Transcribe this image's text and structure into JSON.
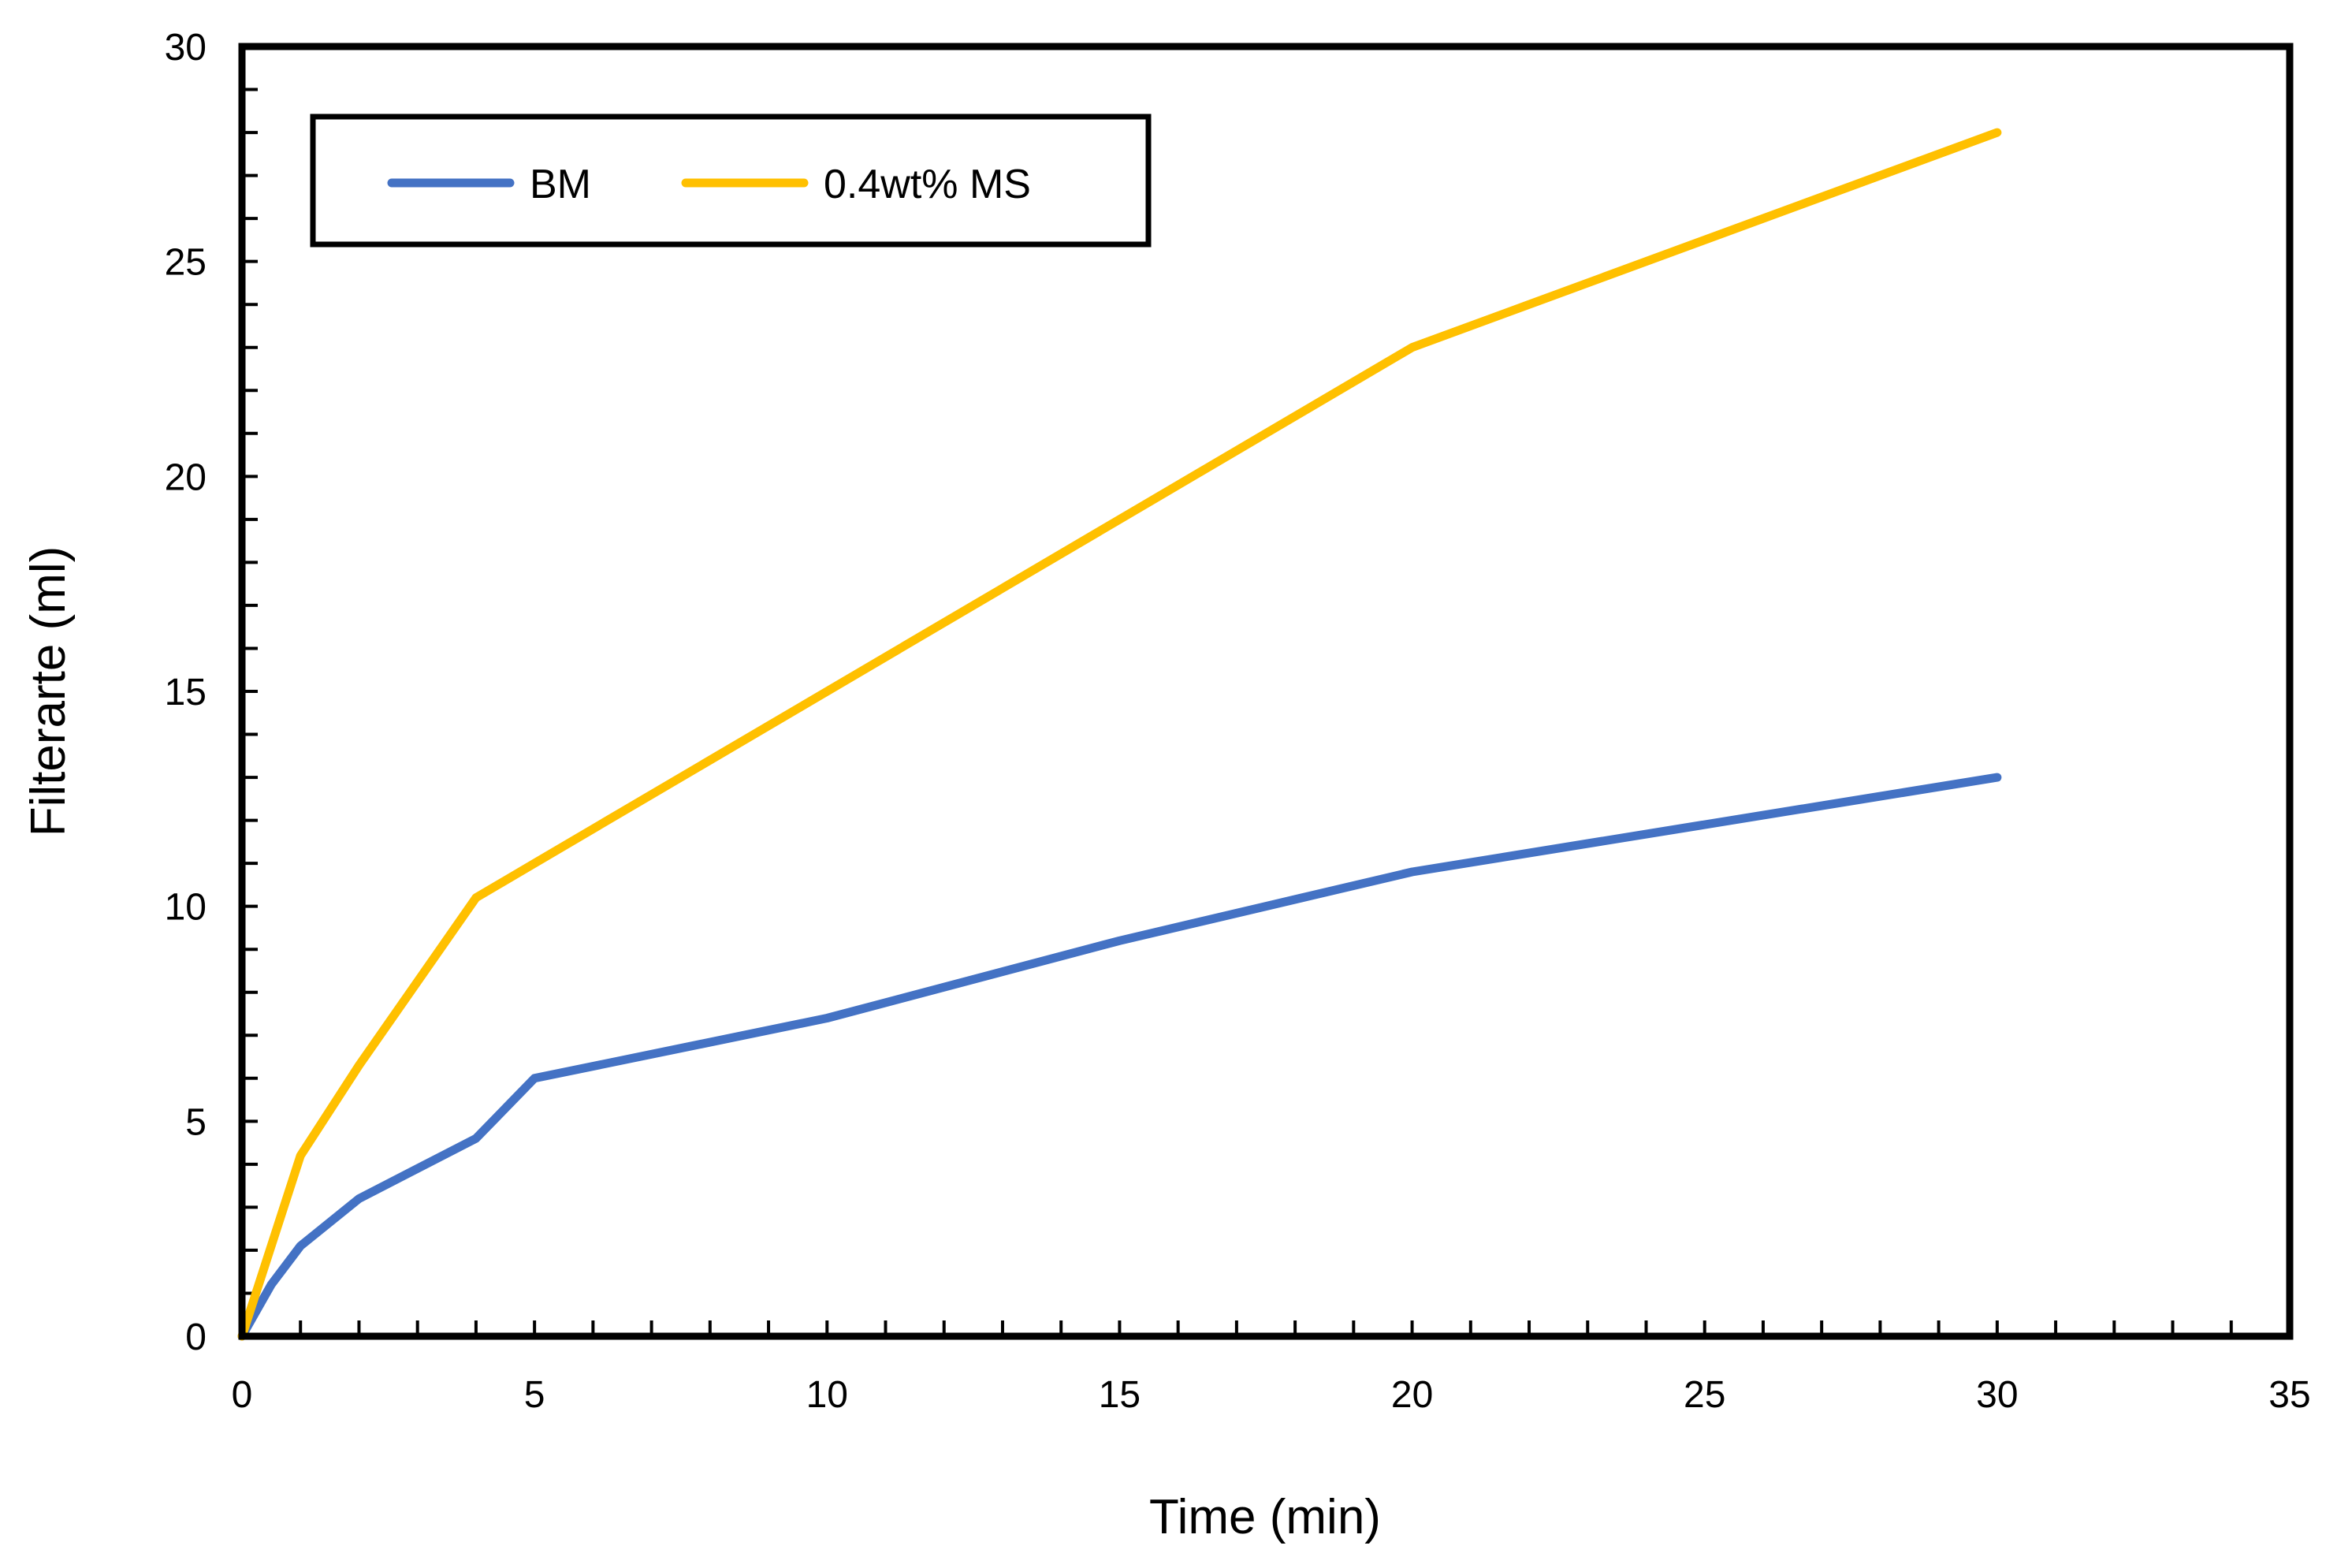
{
  "chart_data": {
    "type": "line",
    "title": "",
    "xlabel": "Time (min)",
    "ylabel": "Filterarte (ml)",
    "xlim": [
      0,
      35
    ],
    "ylim": [
      0,
      30
    ],
    "x_major_ticks": [
      0,
      5,
      10,
      15,
      20,
      25,
      30,
      35
    ],
    "y_major_ticks": [
      0,
      5,
      10,
      15,
      20,
      25,
      30
    ],
    "x_minor_step": 1,
    "y_minor_step": 1,
    "grid": false,
    "legend_position": "top-left",
    "series": [
      {
        "name": "BM",
        "color": "#4472C4",
        "x": [
          0,
          0.5,
          1,
          2,
          4,
          5,
          10,
          15,
          20,
          30
        ],
        "y": [
          0,
          1.2,
          2.1,
          3.2,
          4.6,
          6.0,
          7.4,
          9.2,
          10.8,
          13.0
        ]
      },
      {
        "name": "0.4wt% MS",
        "color": "#FFC000",
        "x": [
          0,
          1,
          2,
          4,
          5,
          10,
          15,
          20,
          30
        ],
        "y": [
          0,
          4.2,
          6.3,
          10.2,
          11.0,
          15.0,
          19.0,
          23.0,
          28.0
        ]
      }
    ]
  }
}
